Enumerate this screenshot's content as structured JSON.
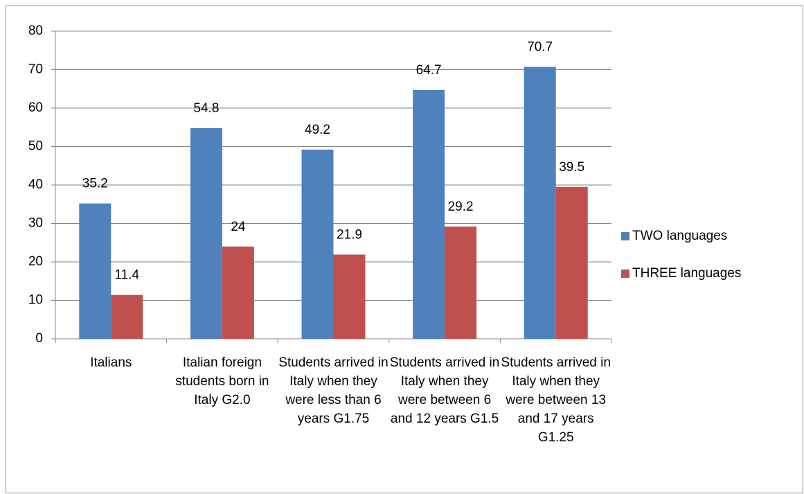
{
  "chart_data": {
    "type": "bar",
    "categories": [
      "Italians",
      "Italian foreign students born in Italy G2.0",
      "Students arrived in Italy when they were less than 6 years G1.75",
      "Students arrived in Italy when they were between 6 and 12 years G1.5",
      "Students arrived in Italy when they were between 13 and 17 years G1.25"
    ],
    "series": [
      {
        "name": "TWO languages",
        "color": "#4f81bd",
        "values": [
          35.2,
          54.8,
          49.2,
          64.7,
          70.7
        ]
      },
      {
        "name": "THREE languages",
        "color": "#c0504d",
        "values": [
          11.4,
          24,
          21.9,
          29.2,
          39.5
        ]
      }
    ],
    "ylim": [
      0,
      80
    ],
    "yticks": [
      0,
      10,
      20,
      30,
      40,
      50,
      60,
      70,
      80
    ],
    "grid": true,
    "legend": "right"
  }
}
